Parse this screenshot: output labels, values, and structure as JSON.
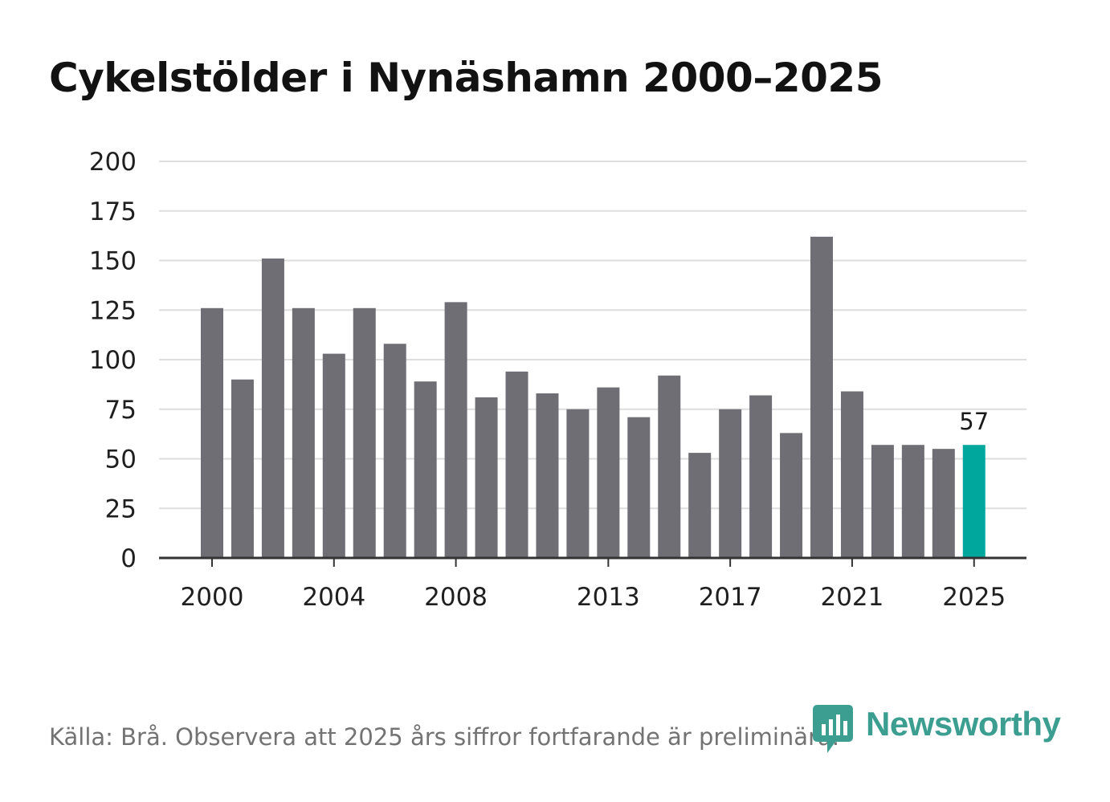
{
  "title": "Cykelstölder i Nynäshamn 2000–2025",
  "footer": {
    "source": "Källa: Brå. Observera att 2025 års siffror fortfarande är preliminära."
  },
  "brand": {
    "name": "Newsworthy",
    "icon": "bar-chart-speech-bubble-icon"
  },
  "colors": {
    "bar": "#6f6e74",
    "highlight": "#00a79d",
    "grid": "#dedede",
    "axis": "#333333",
    "text": "#1f1f1f",
    "brand": "#3b9e91"
  },
  "chart_data": {
    "type": "bar",
    "title": "Cykelstölder i Nynäshamn 2000–2025",
    "xlabel": "",
    "ylabel": "",
    "categories": [
      "2000",
      "2001",
      "2002",
      "2003",
      "2004",
      "2005",
      "2006",
      "2007",
      "2008",
      "2009",
      "2010",
      "2011",
      "2012",
      "2013",
      "2014",
      "2015",
      "2016",
      "2017",
      "2018",
      "2019",
      "2020",
      "2021",
      "2022",
      "2023",
      "2024",
      "2025"
    ],
    "values": [
      126,
      90,
      151,
      126,
      103,
      126,
      108,
      89,
      129,
      81,
      94,
      83,
      75,
      86,
      71,
      92,
      53,
      75,
      82,
      63,
      162,
      84,
      57,
      57,
      55,
      57
    ],
    "ylim": [
      0,
      200
    ],
    "yticks": [
      "0",
      "25",
      "50",
      "75",
      "100",
      "125",
      "150",
      "175",
      "200"
    ],
    "xtick_labels": [
      "2000",
      "2004",
      "2008",
      "2013",
      "2017",
      "2021",
      "2025"
    ],
    "highlight": {
      "category": "2025",
      "label": "57"
    },
    "grid": true,
    "legend": "none"
  }
}
